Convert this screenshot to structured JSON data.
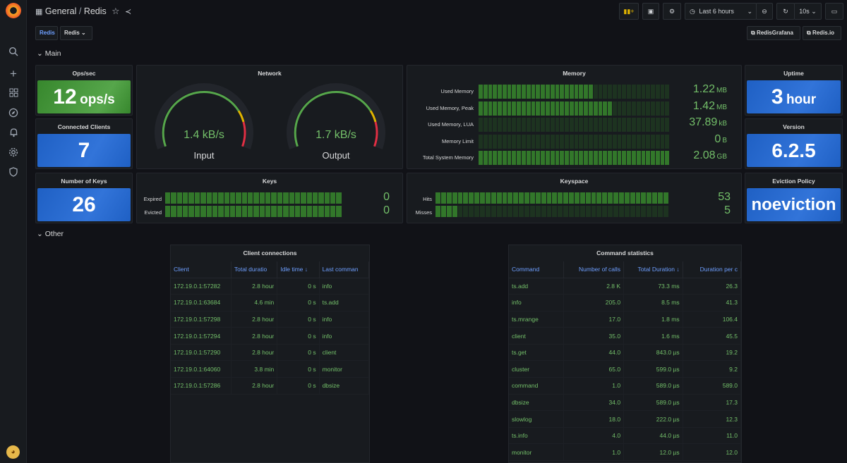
{
  "nav": {
    "breadcrumb_folder": "General",
    "breadcrumb_sep": "/",
    "breadcrumb_dash": "Redis"
  },
  "toolbar": {
    "time_range": "Last 6 hours",
    "refresh": "10s"
  },
  "vars": {
    "tag": "Redis",
    "dropdown": "Redis"
  },
  "links": {
    "redis_grafana": "RedisGrafana",
    "redis_io": "Redis.io"
  },
  "rows": {
    "main": "Main",
    "other": "Other"
  },
  "ops": {
    "title": "Ops/sec",
    "value": "12",
    "unit": "ops/s"
  },
  "clients": {
    "title": "Connected Clients",
    "value": "7"
  },
  "keys_count": {
    "title": "Number of Keys",
    "value": "26"
  },
  "network": {
    "title": "Network",
    "input_value": "1.4 kB/s",
    "input_label": "Input",
    "output_value": "1.7 kB/s",
    "output_label": "Output",
    "input_fraction": 1.0,
    "output_fraction": 1.0
  },
  "memory": {
    "title": "Memory",
    "rows": [
      {
        "label": "Used Memory",
        "value": "1.22",
        "unit": "MB",
        "fill": 0.6
      },
      {
        "label": "Used Memory, Peak",
        "value": "1.42",
        "unit": "MB",
        "fill": 0.7
      },
      {
        "label": "Used Memory, LUA",
        "value": "37.89",
        "unit": "kB",
        "fill": 0.0
      },
      {
        "label": "Memory Limit",
        "value": "0",
        "unit": "B",
        "fill": 0.0
      },
      {
        "label": "Total System Memory",
        "value": "2.08",
        "unit": "GB",
        "fill": 1.0
      }
    ]
  },
  "keys": {
    "title": "Keys",
    "rows": [
      {
        "label": "Expired",
        "value": "0",
        "fill": 1.0
      },
      {
        "label": "Evicted",
        "value": "0",
        "fill": 1.0
      }
    ]
  },
  "keyspace": {
    "title": "Keyspace",
    "rows": [
      {
        "label": "Hits",
        "value": "53",
        "fill": 1.0
      },
      {
        "label": "Misses",
        "value": "5",
        "fill": 0.1
      }
    ]
  },
  "uptime": {
    "title": "Uptime",
    "value": "3",
    "unit": "hour"
  },
  "version": {
    "title": "Version",
    "value": "6.2.5"
  },
  "eviction": {
    "title": "Eviction Policy",
    "value": "noeviction"
  },
  "client_table": {
    "title": "Client connections",
    "headers": [
      "Client",
      "Total duratio",
      "Idle time ↓",
      "Last comman"
    ],
    "rows": [
      [
        "172.19.0.1:57282",
        "2.8 hour",
        "0 s",
        "info"
      ],
      [
        "172.19.0.1:63684",
        "4.6 min",
        "0 s",
        "ts.add"
      ],
      [
        "172.19.0.1:57298",
        "2.8 hour",
        "0 s",
        "info"
      ],
      [
        "172.19.0.1:57294",
        "2.8 hour",
        "0 s",
        "info"
      ],
      [
        "172.19.0.1:57290",
        "2.8 hour",
        "0 s",
        "client"
      ],
      [
        "172.19.0.1:64060",
        "3.8 min",
        "0 s",
        "monitor"
      ],
      [
        "172.19.0.1:57286",
        "2.8 hour",
        "0 s",
        "dbsize"
      ]
    ]
  },
  "command_table": {
    "title": "Command statistics",
    "headers": [
      "Command",
      "Number of calls",
      "Total Duration ↓",
      "Duration per c"
    ],
    "rows": [
      [
        "ts.add",
        "2.8 K",
        "73.3 ms",
        "26.3"
      ],
      [
        "info",
        "205.0",
        "8.5 ms",
        "41.3"
      ],
      [
        "ts.mrange",
        "17.0",
        "1.8 ms",
        "106.4"
      ],
      [
        "client",
        "35.0",
        "1.6 ms",
        "45.5"
      ],
      [
        "ts.get",
        "44.0",
        "843.0 µs",
        "19.2"
      ],
      [
        "cluster",
        "65.0",
        "599.0 µs",
        "9.2"
      ],
      [
        "command",
        "1.0",
        "589.0 µs",
        "589.0"
      ],
      [
        "dbsize",
        "34.0",
        "589.0 µs",
        "17.3"
      ],
      [
        "slowlog",
        "18.0",
        "222.0 µs",
        "12.3"
      ],
      [
        "ts.info",
        "4.0",
        "44.0 µs",
        "11.0"
      ],
      [
        "monitor",
        "1.0",
        "12.0 µs",
        "12.0"
      ]
    ]
  }
}
